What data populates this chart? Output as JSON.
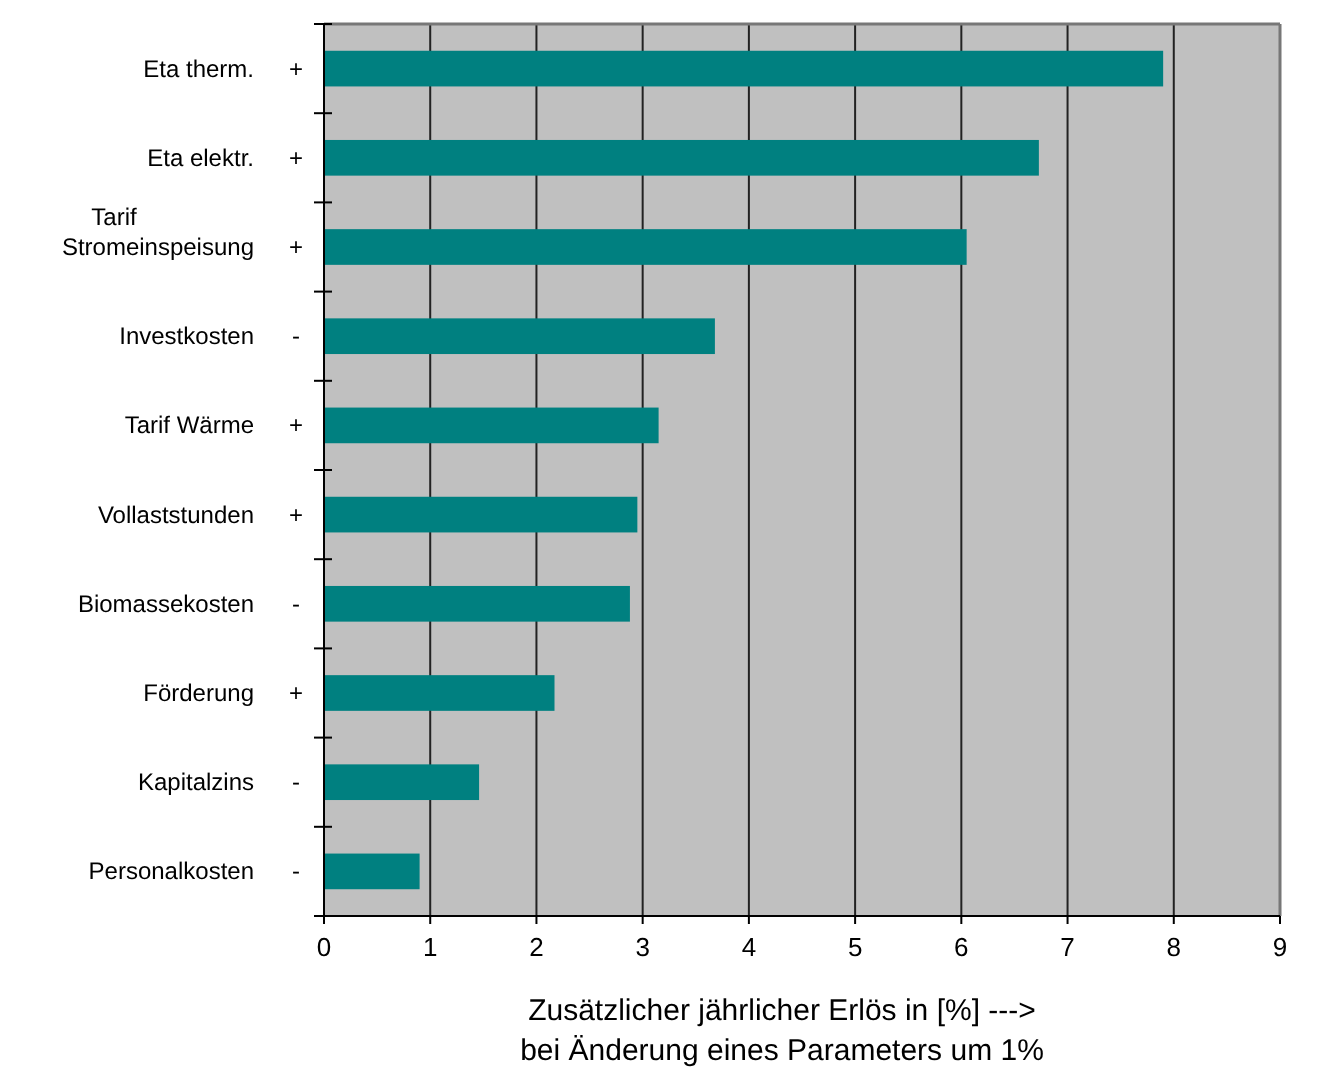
{
  "chart_data": {
    "type": "bar",
    "orientation": "horizontal",
    "xlabel": "Zusätzlicher jährlicher Erlös in [%] --->\nbei Änderung eines Parameters um 1%",
    "categories": [
      "Eta therm. +",
      "Eta elektr. +",
      "Tarif\nStromeinspeisung +",
      "Investkosten -",
      "Tarif Wärme +",
      "Vollaststunden +",
      "Biomassekosten -",
      "Förderung +",
      "Kapitalzins -",
      "Personalkosten -"
    ],
    "values": [
      7.9,
      6.73,
      6.05,
      3.68,
      3.15,
      2.95,
      2.88,
      2.17,
      1.46,
      0.9
    ],
    "color": "#008080",
    "xlim": [
      0,
      9
    ],
    "xticks": [
      0,
      1,
      2,
      3,
      4,
      5,
      6,
      7,
      8,
      9
    ],
    "grid": "x"
  }
}
